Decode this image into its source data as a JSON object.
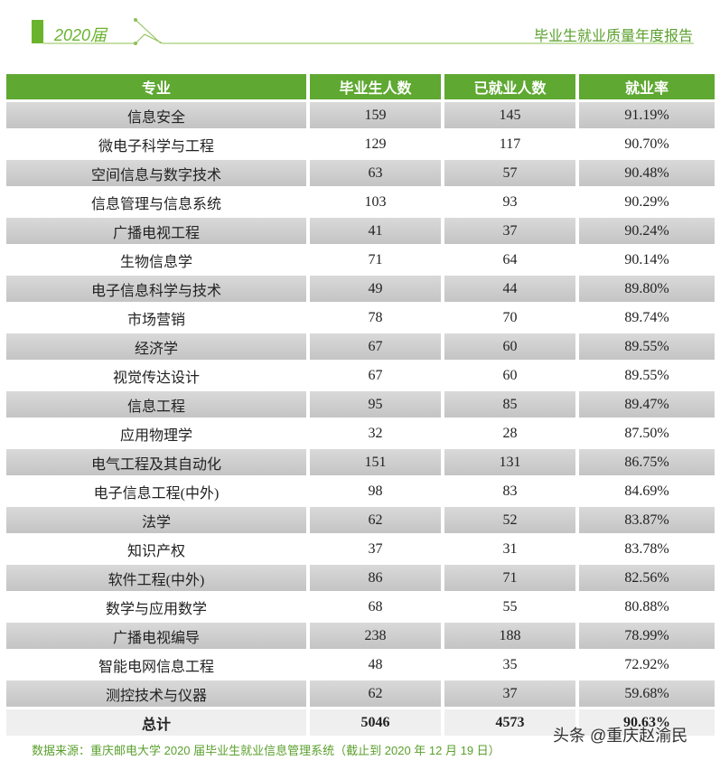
{
  "header": {
    "year_label": "2020届",
    "report_title": "毕业生就业质量年度报告"
  },
  "table": {
    "columns": [
      "专业",
      "毕业生人数",
      "已就业人数",
      "就业率"
    ],
    "rows": [
      [
        "信息安全",
        "159",
        "145",
        "91.19%"
      ],
      [
        "微电子科学与工程",
        "129",
        "117",
        "90.70%"
      ],
      [
        "空间信息与数字技术",
        "63",
        "57",
        "90.48%"
      ],
      [
        "信息管理与信息系统",
        "103",
        "93",
        "90.29%"
      ],
      [
        "广播电视工程",
        "41",
        "37",
        "90.24%"
      ],
      [
        "生物信息学",
        "71",
        "64",
        "90.14%"
      ],
      [
        "电子信息科学与技术",
        "49",
        "44",
        "89.80%"
      ],
      [
        "市场营销",
        "78",
        "70",
        "89.74%"
      ],
      [
        "经济学",
        "67",
        "60",
        "89.55%"
      ],
      [
        "视觉传达设计",
        "67",
        "60",
        "89.55%"
      ],
      [
        "信息工程",
        "95",
        "85",
        "89.47%"
      ],
      [
        "应用物理学",
        "32",
        "28",
        "87.50%"
      ],
      [
        "电气工程及其自动化",
        "151",
        "131",
        "86.75%"
      ],
      [
        "电子信息工程(中外)",
        "98",
        "83",
        "84.69%"
      ],
      [
        "法学",
        "62",
        "52",
        "83.87%"
      ],
      [
        "知识产权",
        "37",
        "31",
        "83.78%"
      ],
      [
        "软件工程(中外)",
        "86",
        "71",
        "82.56%"
      ],
      [
        "数学与应用数学",
        "68",
        "55",
        "80.88%"
      ],
      [
        "广播电视编导",
        "238",
        "188",
        "78.99%"
      ],
      [
        "智能电网信息工程",
        "48",
        "35",
        "72.92%"
      ],
      [
        "测控技术与仪器",
        "62",
        "37",
        "59.68%"
      ]
    ],
    "total": [
      "总计",
      "5046",
      "4573",
      "90.63%"
    ]
  },
  "footer": {
    "source": "数据来源：重庆邮电大学 2020 届毕业生就业信息管理系统（截止到 2020 年 12 月 19 日）",
    "watermark": "头条 @重庆赵渝民"
  }
}
